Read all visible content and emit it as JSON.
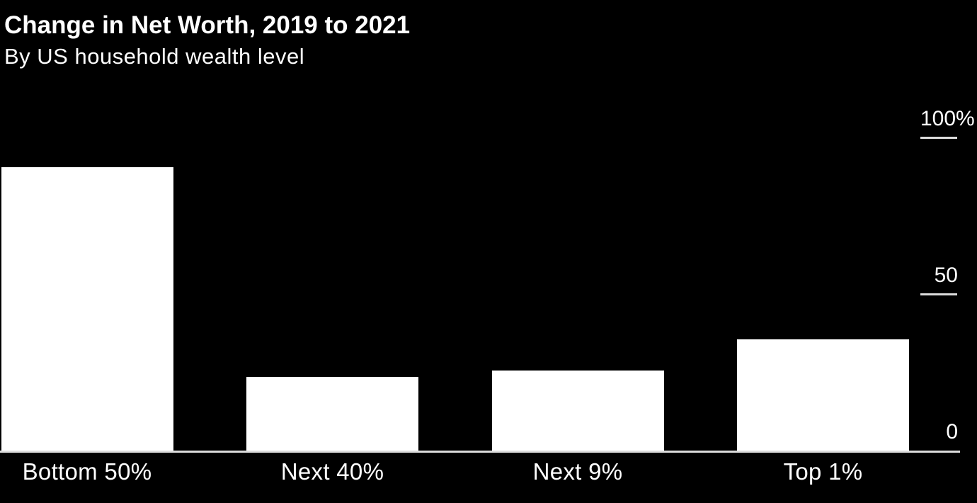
{
  "chart_data": {
    "type": "bar",
    "title": "Change in Net Worth, 2019 to 2021",
    "subtitle": "By US household wealth level",
    "categories": [
      "Bottom 50%",
      "Next 40%",
      "Next 9%",
      "Top 1%"
    ],
    "values": [
      91,
      24,
      26,
      36
    ],
    "value_unit": "%",
    "xlabel": "",
    "ylabel": "",
    "ylim": [
      0,
      100
    ],
    "yticks": [
      {
        "value": 100,
        "label": "100%"
      },
      {
        "value": 50,
        "label": "50"
      },
      {
        "value": 0,
        "label": "0"
      }
    ],
    "grid": false,
    "legend": "none",
    "axis_side": "right",
    "colors": {
      "background": "#000000",
      "bar": "#ffffff",
      "text": "#ffffff",
      "axis": "#dcdcdc"
    }
  }
}
